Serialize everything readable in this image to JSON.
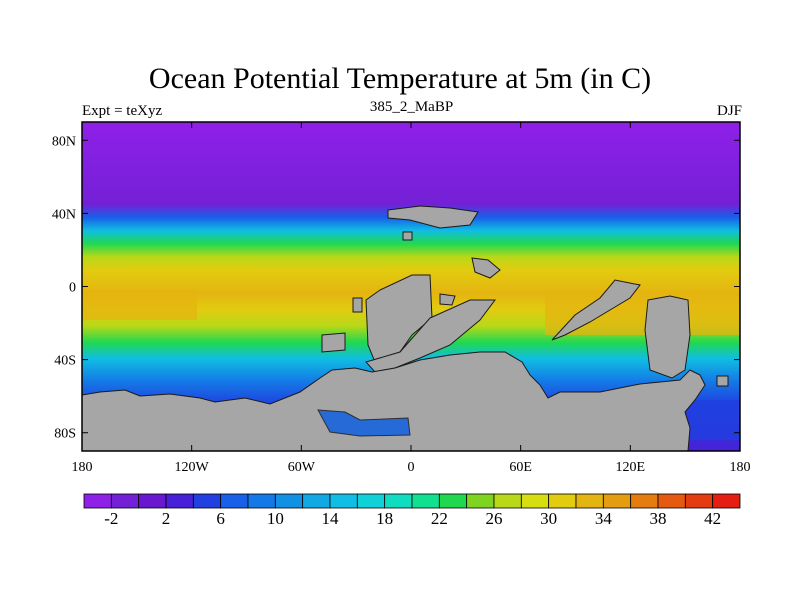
{
  "header": {
    "title": "Ocean Potential Temperature at 5m (in C)",
    "left_label": "Expt = teXyz",
    "center_label": "385_2_MaBP",
    "right_label": "DJF"
  },
  "map": {
    "projection": "cylindrical-equidistant",
    "lon_range": [
      -180,
      180
    ],
    "lat_range": [
      -90,
      90
    ],
    "x_ticks": [
      "180",
      "120W",
      "60W",
      "0",
      "60E",
      "120E",
      "180"
    ],
    "y_ticks": [
      "80N",
      "40N",
      "0",
      "40S",
      "80S"
    ],
    "land_color": "#a6a6a6",
    "field": "sea surface potential temperature",
    "zonal_pattern": "warm (~30-34 C) in tropics, cooling poleward to ~-2 C near 60-90N and high southern latitudes"
  },
  "colorbar": {
    "labels": [
      "-2",
      "2",
      "6",
      "10",
      "14",
      "18",
      "22",
      "26",
      "30",
      "34",
      "38",
      "42"
    ],
    "colors": [
      "#8f20e8",
      "#7420d6",
      "#6a18d0",
      "#4820d8",
      "#2040e0",
      "#1860e8",
      "#1478e6",
      "#1290e4",
      "#12a8e4",
      "#10bde4",
      "#10d0d8",
      "#10dcc0",
      "#10e090",
      "#20d850",
      "#7ed420",
      "#b8d818",
      "#d6de12",
      "#e2cc10",
      "#e4b410",
      "#e49c10",
      "#e47c10",
      "#e45a10",
      "#e43c10",
      "#e41e10"
    ]
  }
}
